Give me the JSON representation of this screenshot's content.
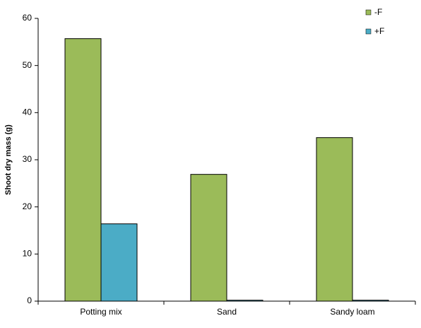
{
  "chart_data": {
    "type": "bar",
    "y_label": "Shoot dry mass (g)",
    "categories": [
      "Potting mix",
      "Sand",
      "Sandy loam"
    ],
    "series": [
      {
        "name": "-F",
        "color": "#9bbb59",
        "values": [
          55.7,
          26.9,
          34.7
        ]
      },
      {
        "name": "+F",
        "color": "#4bacc6",
        "values": [
          16.4,
          0.2,
          0.2
        ]
      }
    ],
    "ylim": [
      0,
      60
    ],
    "yticks": [
      0,
      10,
      20,
      30,
      40,
      50,
      60
    ],
    "grid": false,
    "legend": "top-right"
  }
}
